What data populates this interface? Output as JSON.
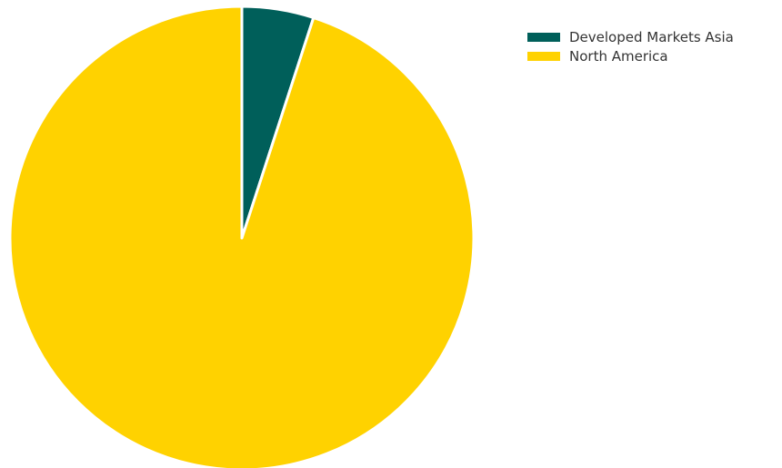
{
  "chart_data": {
    "type": "pie",
    "title": "",
    "start_angle": "top",
    "direction": "clockwise",
    "slices": [
      {
        "label": "Developed Markets Asia",
        "value": 5.0,
        "color": "#005f5a"
      },
      {
        "label": "North America",
        "value": 95.0,
        "color": "#ffd200"
      }
    ],
    "legend": {
      "position": "top-right"
    }
  }
}
